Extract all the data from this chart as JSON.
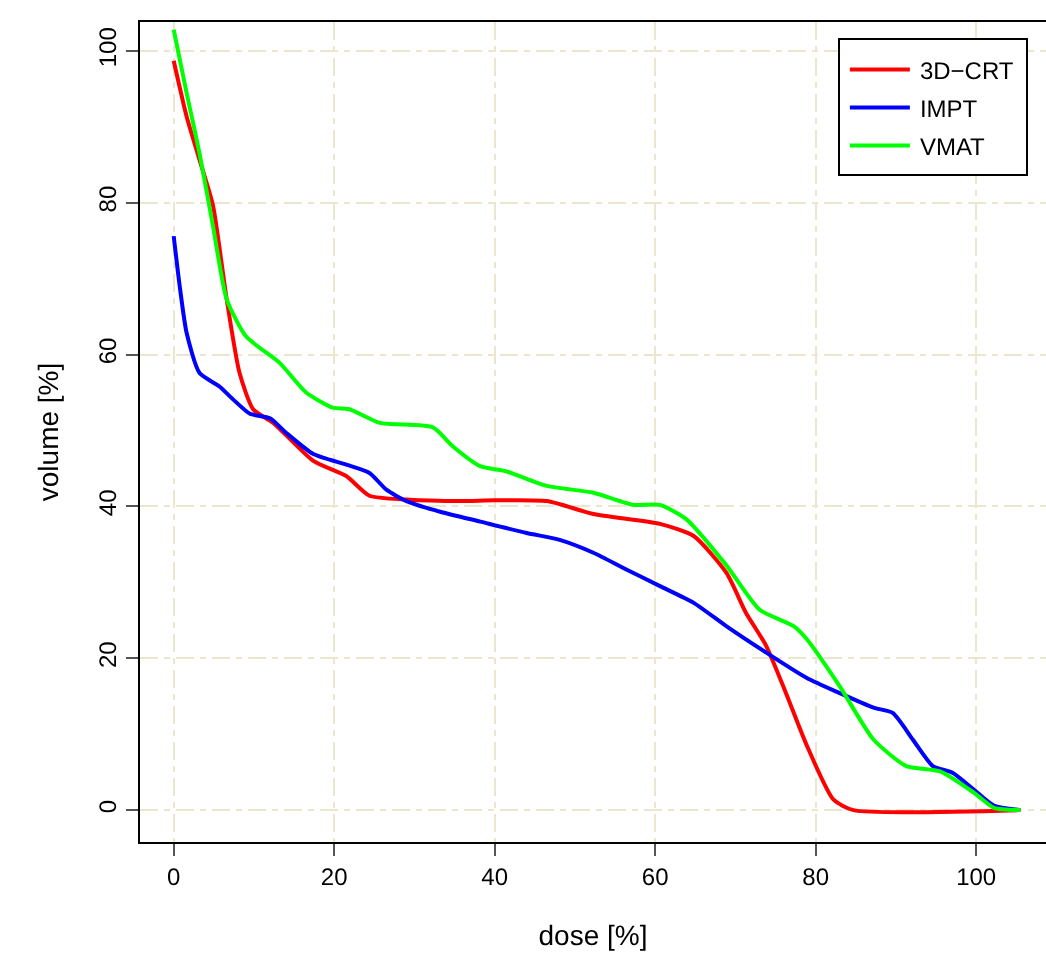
{
  "chart_data": {
    "type": "line",
    "xlabel": "dose [%]",
    "ylabel": "volume [%]",
    "xlim": [
      -4.2,
      108.7
    ],
    "ylim": [
      -4.2,
      103.8
    ],
    "xticks": [
      0,
      20,
      40,
      60,
      80,
      100
    ],
    "yticks": [
      0,
      20,
      40,
      60,
      80,
      100
    ],
    "grid": true,
    "legend": "top right",
    "line_style": "solid",
    "marker": "none",
    "series": [
      {
        "name": "3D−CRT",
        "color": "#ff0000",
        "x": [
          0,
          1.6,
          3.2,
          4.9,
          6.6,
          8.2,
          9.9,
          12.4,
          17.4,
          21.5,
          24.4,
          29,
          35.7,
          40,
          46.5,
          52.3,
          60.6,
          64.8,
          68.9,
          71.3,
          73.8,
          76.3,
          78.9,
          82.2,
          84.7,
          105.5
        ],
        "values": [
          98.7,
          91.4,
          85.7,
          79.6,
          67.3,
          57.6,
          52.8,
          51,
          46,
          44,
          41.4,
          40.9,
          40.7,
          40.8,
          40.7,
          39,
          37.7,
          36.1,
          31.2,
          26,
          21.7,
          15.4,
          8.5,
          1.4,
          0,
          0
        ]
      },
      {
        "name": "IMPT",
        "color": "#0000ff",
        "x": [
          0,
          0.75,
          1.6,
          3.2,
          5.7,
          7.4,
          9.5,
          12,
          14,
          17.4,
          21.5,
          24.4,
          26.5,
          29,
          33.2,
          38.2,
          44,
          48.1,
          52.3,
          56.4,
          60.6,
          64.8,
          68.9,
          73.9,
          78.9,
          83,
          87.2,
          89.6,
          92.1,
          94.6,
          97.1,
          99.7,
          102.2,
          105.5
        ],
        "values": [
          75.6,
          69,
          62.9,
          57.6,
          55.8,
          54.1,
          52.2,
          51.6,
          49.7,
          46.9,
          45.5,
          44.4,
          42.2,
          40.7,
          39.3,
          38,
          36.5,
          35.6,
          33.9,
          31.7,
          29.5,
          27.3,
          24.2,
          20.7,
          17.4,
          15.4,
          13.5,
          12.8,
          9.3,
          5.8,
          4.9,
          2.7,
          0.6,
          0
        ]
      },
      {
        "name": "VMAT",
        "color": "#00ff00",
        "x": [
          0,
          1.6,
          3.2,
          4.9,
          6.6,
          9,
          13.2,
          16.5,
          19.8,
          21.9,
          25.7,
          32.3,
          34.8,
          38.2,
          41.5,
          46.5,
          52.3,
          57.3,
          60.6,
          63.9,
          68.9,
          73,
          77.3,
          78.9,
          83,
          87.2,
          91.3,
          95.5,
          99.7,
          102.2,
          105.5
        ],
        "values": [
          102.8,
          94.5,
          86.6,
          76.9,
          67.3,
          62.4,
          58.9,
          55,
          53,
          52.8,
          51,
          50.4,
          47.9,
          45.3,
          44.6,
          42.7,
          41.8,
          40.2,
          40.2,
          38.3,
          32.2,
          26.4,
          24.2,
          22.5,
          16.3,
          9.3,
          5.8,
          5.1,
          2.3,
          0.3,
          0
        ]
      }
    ]
  }
}
